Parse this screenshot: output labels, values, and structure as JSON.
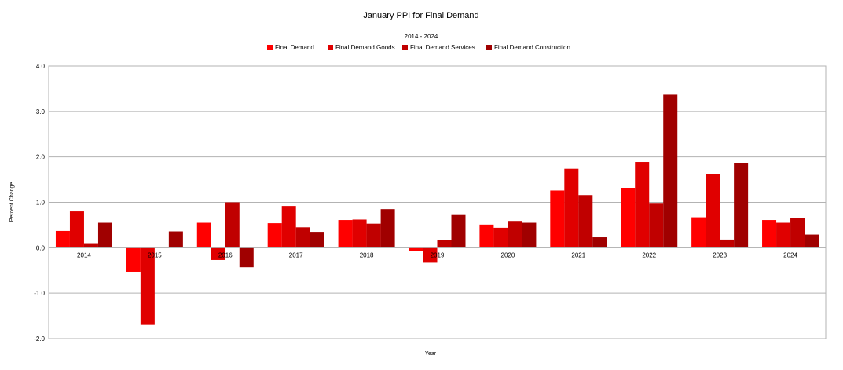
{
  "chart_data": {
    "type": "bar",
    "title": "January PPI for Final Demand",
    "subtitle": "2014 - 2024",
    "xlabel": "Year",
    "ylabel": "Percent Change",
    "ylim": [
      -2.0,
      4.0
    ],
    "yticks": [
      "4.0",
      "3.0",
      "2.0",
      "1.0",
      "0.0",
      "-1.0",
      "-2.0"
    ],
    "grid": true,
    "legend_position": "top",
    "categories": [
      "2014",
      "2015",
      "2016",
      "2017",
      "2018",
      "2019",
      "2020",
      "2021",
      "2022",
      "2023",
      "2024"
    ],
    "series": [
      {
        "name": "Final Demand",
        "color": "#ff0000",
        "values": [
          0.37,
          -0.53,
          0.55,
          0.54,
          0.61,
          -0.08,
          0.51,
          1.26,
          1.32,
          0.67,
          0.61
        ]
      },
      {
        "name": "Final Demand Goods",
        "color": "#e00000",
        "values": [
          0.8,
          -1.7,
          -0.27,
          0.92,
          0.62,
          -0.33,
          0.44,
          1.74,
          1.89,
          1.62,
          0.55
        ]
      },
      {
        "name": "Final Demand Services",
        "color": "#c00000",
        "values": [
          0.1,
          0.02,
          1.0,
          0.45,
          0.53,
          0.17,
          0.59,
          1.16,
          0.97,
          0.18,
          0.65
        ]
      },
      {
        "name": "Final Demand Construction",
        "color": "#a00000",
        "values": [
          0.55,
          0.36,
          -0.43,
          0.35,
          0.85,
          0.72,
          0.55,
          0.23,
          3.37,
          1.87,
          0.29
        ]
      }
    ]
  }
}
